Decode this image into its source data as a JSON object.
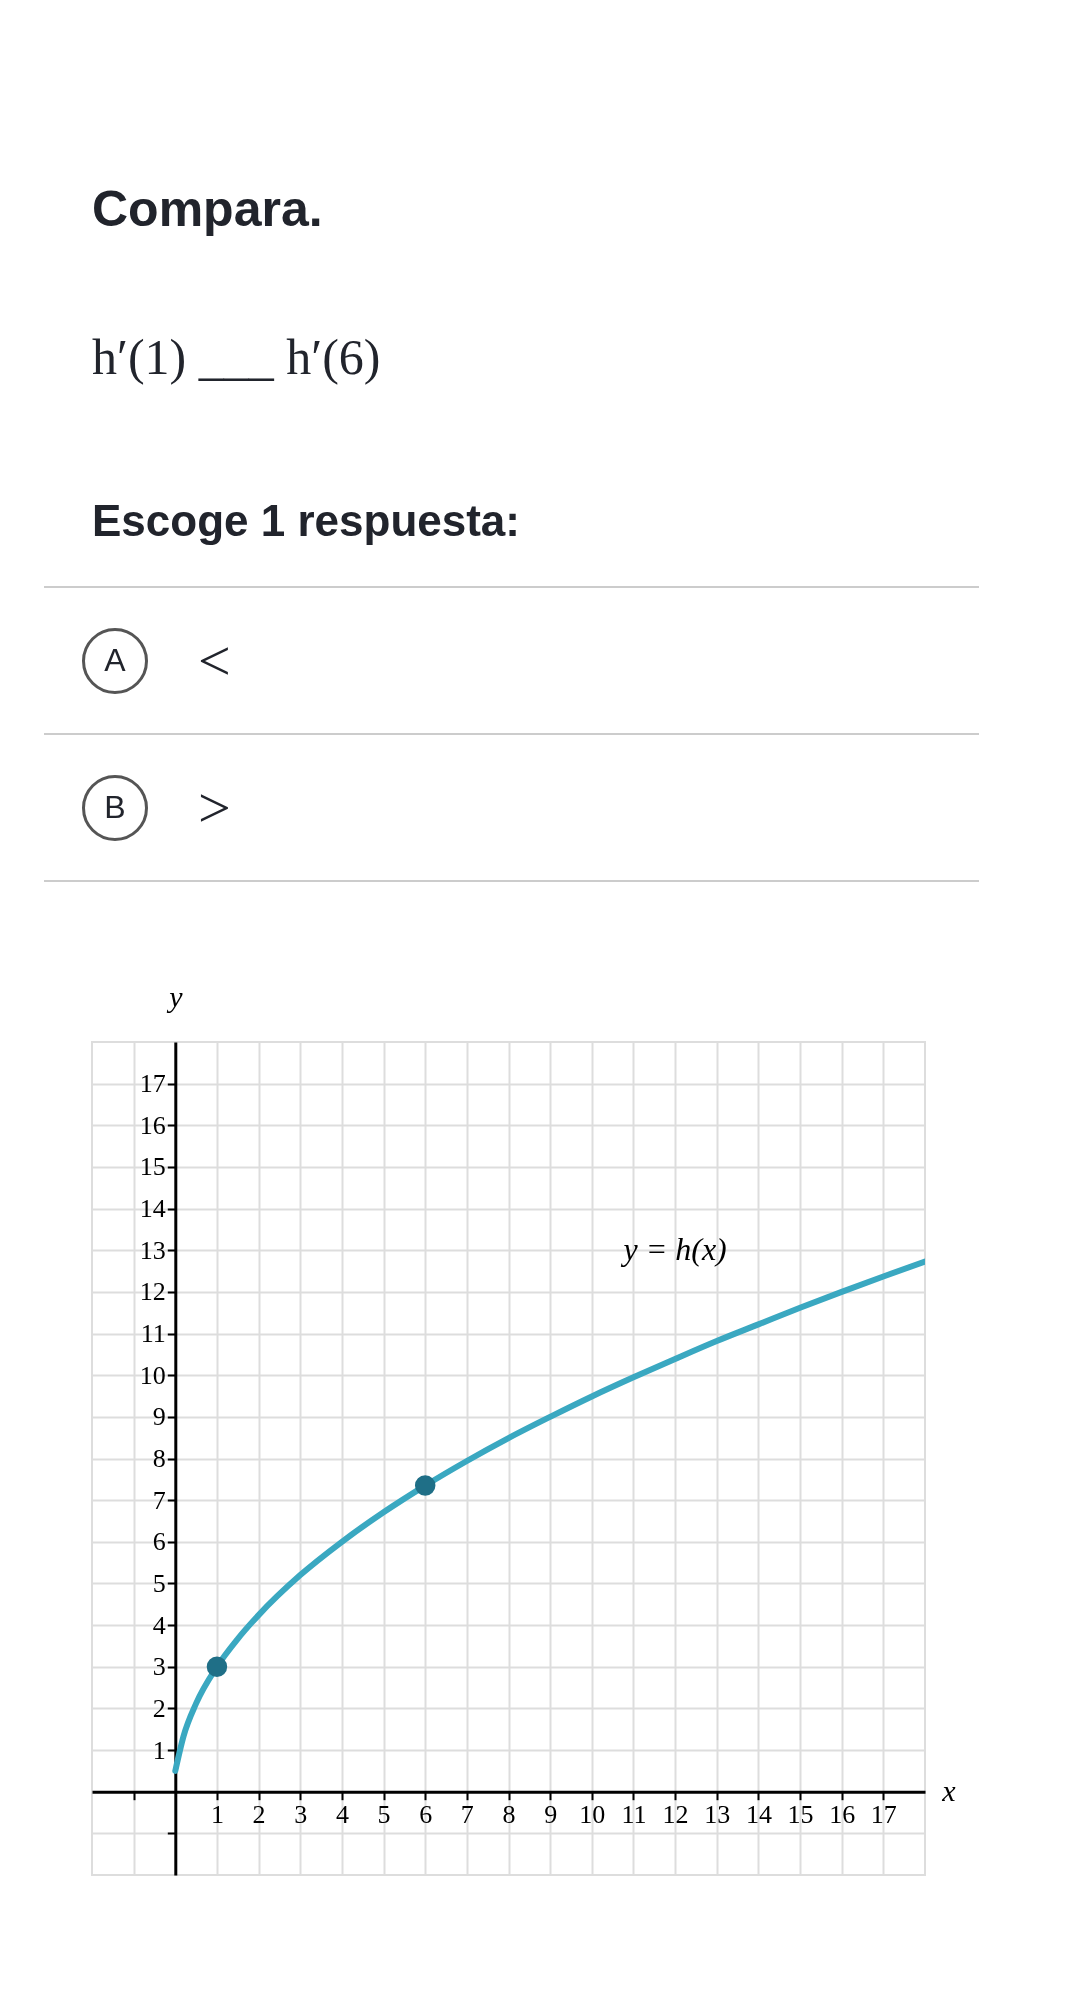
{
  "chart_data": {
    "type": "line",
    "title": "Compara.",
    "subtitle": "h′(1) ___ h′(6)",
    "xlabel": "x",
    "ylabel": "y",
    "annotations": [
      "Escoge 1 respuesta:",
      "A",
      "<",
      "B",
      ">",
      "y = h(x)"
    ],
    "xlim": [
      -2,
      18
    ],
    "ylim": [
      -2,
      18
    ],
    "xticks": [
      {
        "value": -1,
        "label": null
      },
      1,
      2,
      3,
      4,
      5,
      6,
      7,
      8,
      9,
      10,
      11,
      12,
      13,
      14,
      15,
      16,
      17
    ],
    "yticks": [
      {
        "value": -1,
        "label": null
      },
      1,
      2,
      3,
      4,
      5,
      6,
      7,
      8,
      9,
      10,
      11,
      12,
      13,
      14,
      15,
      16,
      17
    ],
    "grid": true,
    "series": [
      {
        "color": "#3aa8c1",
        "x": [
          0,
          0.2,
          0.5,
          1,
          1.5,
          2,
          3,
          4,
          5,
          6,
          7,
          8,
          9,
          10,
          11,
          12,
          13,
          14,
          15,
          16,
          17,
          18
        ],
        "values": [
          0.5,
          1.34,
          2.12,
          3,
          3.67,
          4.24,
          5.2,
          6,
          6.71,
          7.35,
          7.94,
          8.49,
          9,
          9.49,
          9.95,
          10.39,
          10.82,
          11.22,
          11.62,
          12,
          12.37,
          12.73
        ]
      },
      {
        "type": "scatter",
        "color": "#1f6f87",
        "x": [
          1,
          6
        ],
        "values": [
          3,
          7.35
        ]
      }
    ]
  }
}
